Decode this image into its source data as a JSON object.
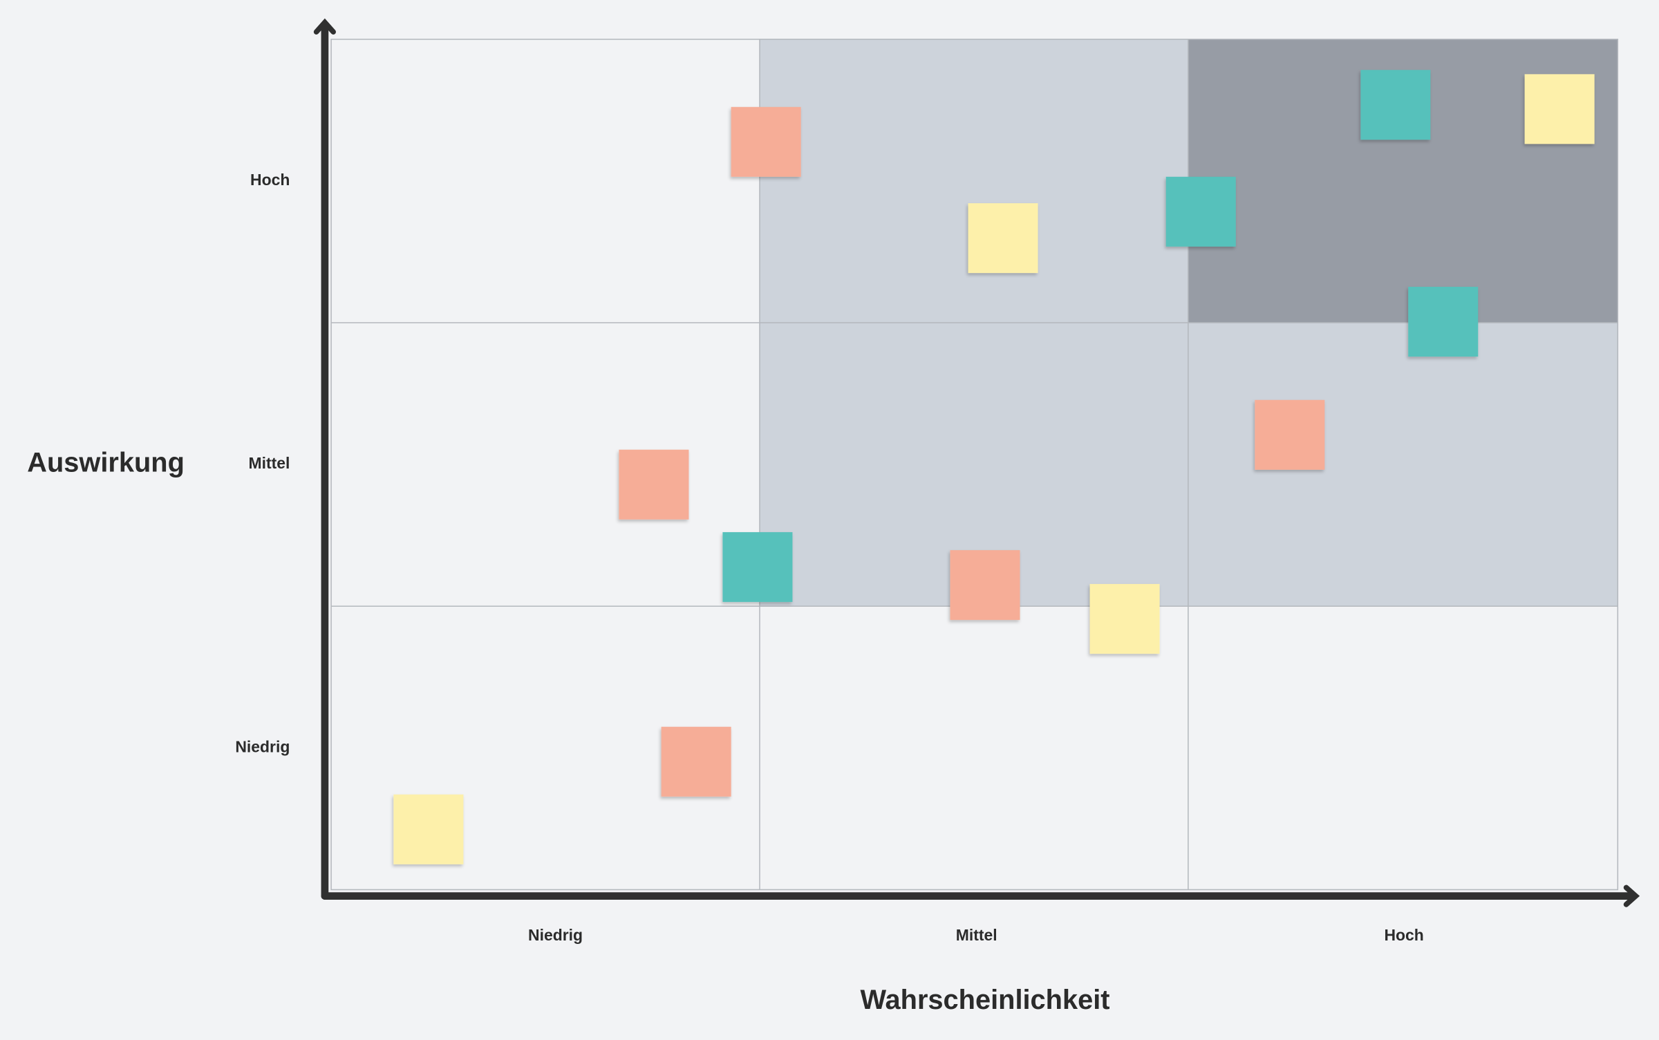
{
  "y_axis": {
    "title": "Auswirkung",
    "labels": [
      "Hoch",
      "Mittel",
      "Niedrig"
    ]
  },
  "x_axis": {
    "title": "Wahrscheinlichkeit",
    "labels": [
      "Niedrig",
      "Mittel",
      "Hoch"
    ]
  }
}
